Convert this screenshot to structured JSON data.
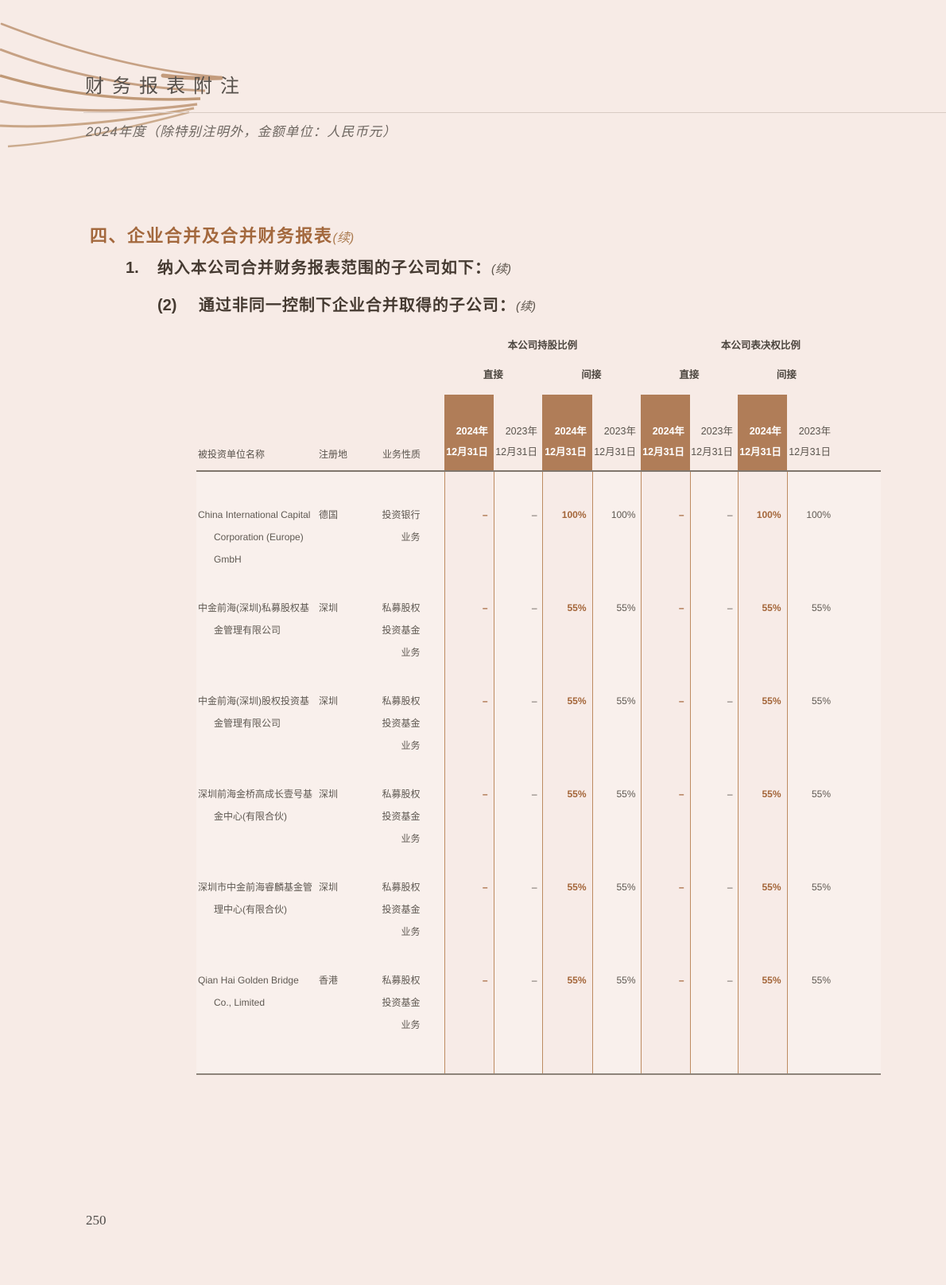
{
  "colors": {
    "page_bg": "#f7ebe6",
    "accent_brown": "#a3683d",
    "header_cell_bg": "#b07d58",
    "swoosh_line": "#c29d80"
  },
  "header": {
    "title": "财务报表附注",
    "subtitle": "2024年度（除特别注明外，金额单位：人民币元）"
  },
  "sections": {
    "s1": {
      "label": "四、企业合并及合并财务报表",
      "cont": "(续)"
    },
    "s2": {
      "num": "1.",
      "text": "纳入本公司合并财务报表范围的子公司如下：",
      "cont": "(续)"
    },
    "s3": {
      "num": "(2)",
      "text": "通过非同一控制下企业合并取得的子公司：",
      "cont": "(续)"
    }
  },
  "table": {
    "groups": [
      "本公司持股比例",
      "本公司表决权比例"
    ],
    "subgroups": [
      "直接",
      "间接",
      "直接",
      "间接"
    ],
    "columns": {
      "name": "被投资单位名称",
      "reg": "注册地",
      "biz": "业务性质"
    },
    "date2024": [
      "2024年",
      "12月31日"
    ],
    "date2023": [
      "2023年",
      "12月31日"
    ],
    "rows": [
      {
        "name": "China International Capital Corporation (Europe) GmbH",
        "reg": "德国",
        "biz": "投资银行业务",
        "vals": [
          "–",
          "–",
          "100%",
          "100%",
          "–",
          "–",
          "100%",
          "100%"
        ]
      },
      {
        "name": "中金前海(深圳)私募股权基金管理有限公司",
        "reg": "深圳",
        "biz": "私募股权投资基金业务",
        "vals": [
          "–",
          "–",
          "55%",
          "55%",
          "–",
          "–",
          "55%",
          "55%"
        ]
      },
      {
        "name": "中金前海(深圳)股权投资基金管理有限公司",
        "reg": "深圳",
        "biz": "私募股权投资基金业务",
        "vals": [
          "–",
          "–",
          "55%",
          "55%",
          "–",
          "–",
          "55%",
          "55%"
        ]
      },
      {
        "name": "深圳前海金桥高成长壹号基金中心(有限合伙)",
        "reg": "深圳",
        "biz": "私募股权投资基金业务",
        "vals": [
          "–",
          "–",
          "55%",
          "55%",
          "–",
          "–",
          "55%",
          "55%"
        ]
      },
      {
        "name": "深圳市中金前海睿麟基金管理中心(有限合伙)",
        "reg": "深圳",
        "biz": "私募股权投资基金业务",
        "vals": [
          "–",
          "–",
          "55%",
          "55%",
          "–",
          "–",
          "55%",
          "55%"
        ]
      },
      {
        "name": "Qian Hai Golden Bridge Co., Limited",
        "reg": "香港",
        "biz": "私募股权投资基金业务",
        "vals": [
          "–",
          "–",
          "55%",
          "55%",
          "–",
          "–",
          "55%",
          "55%"
        ]
      }
    ]
  },
  "page": {
    "number": "250"
  }
}
